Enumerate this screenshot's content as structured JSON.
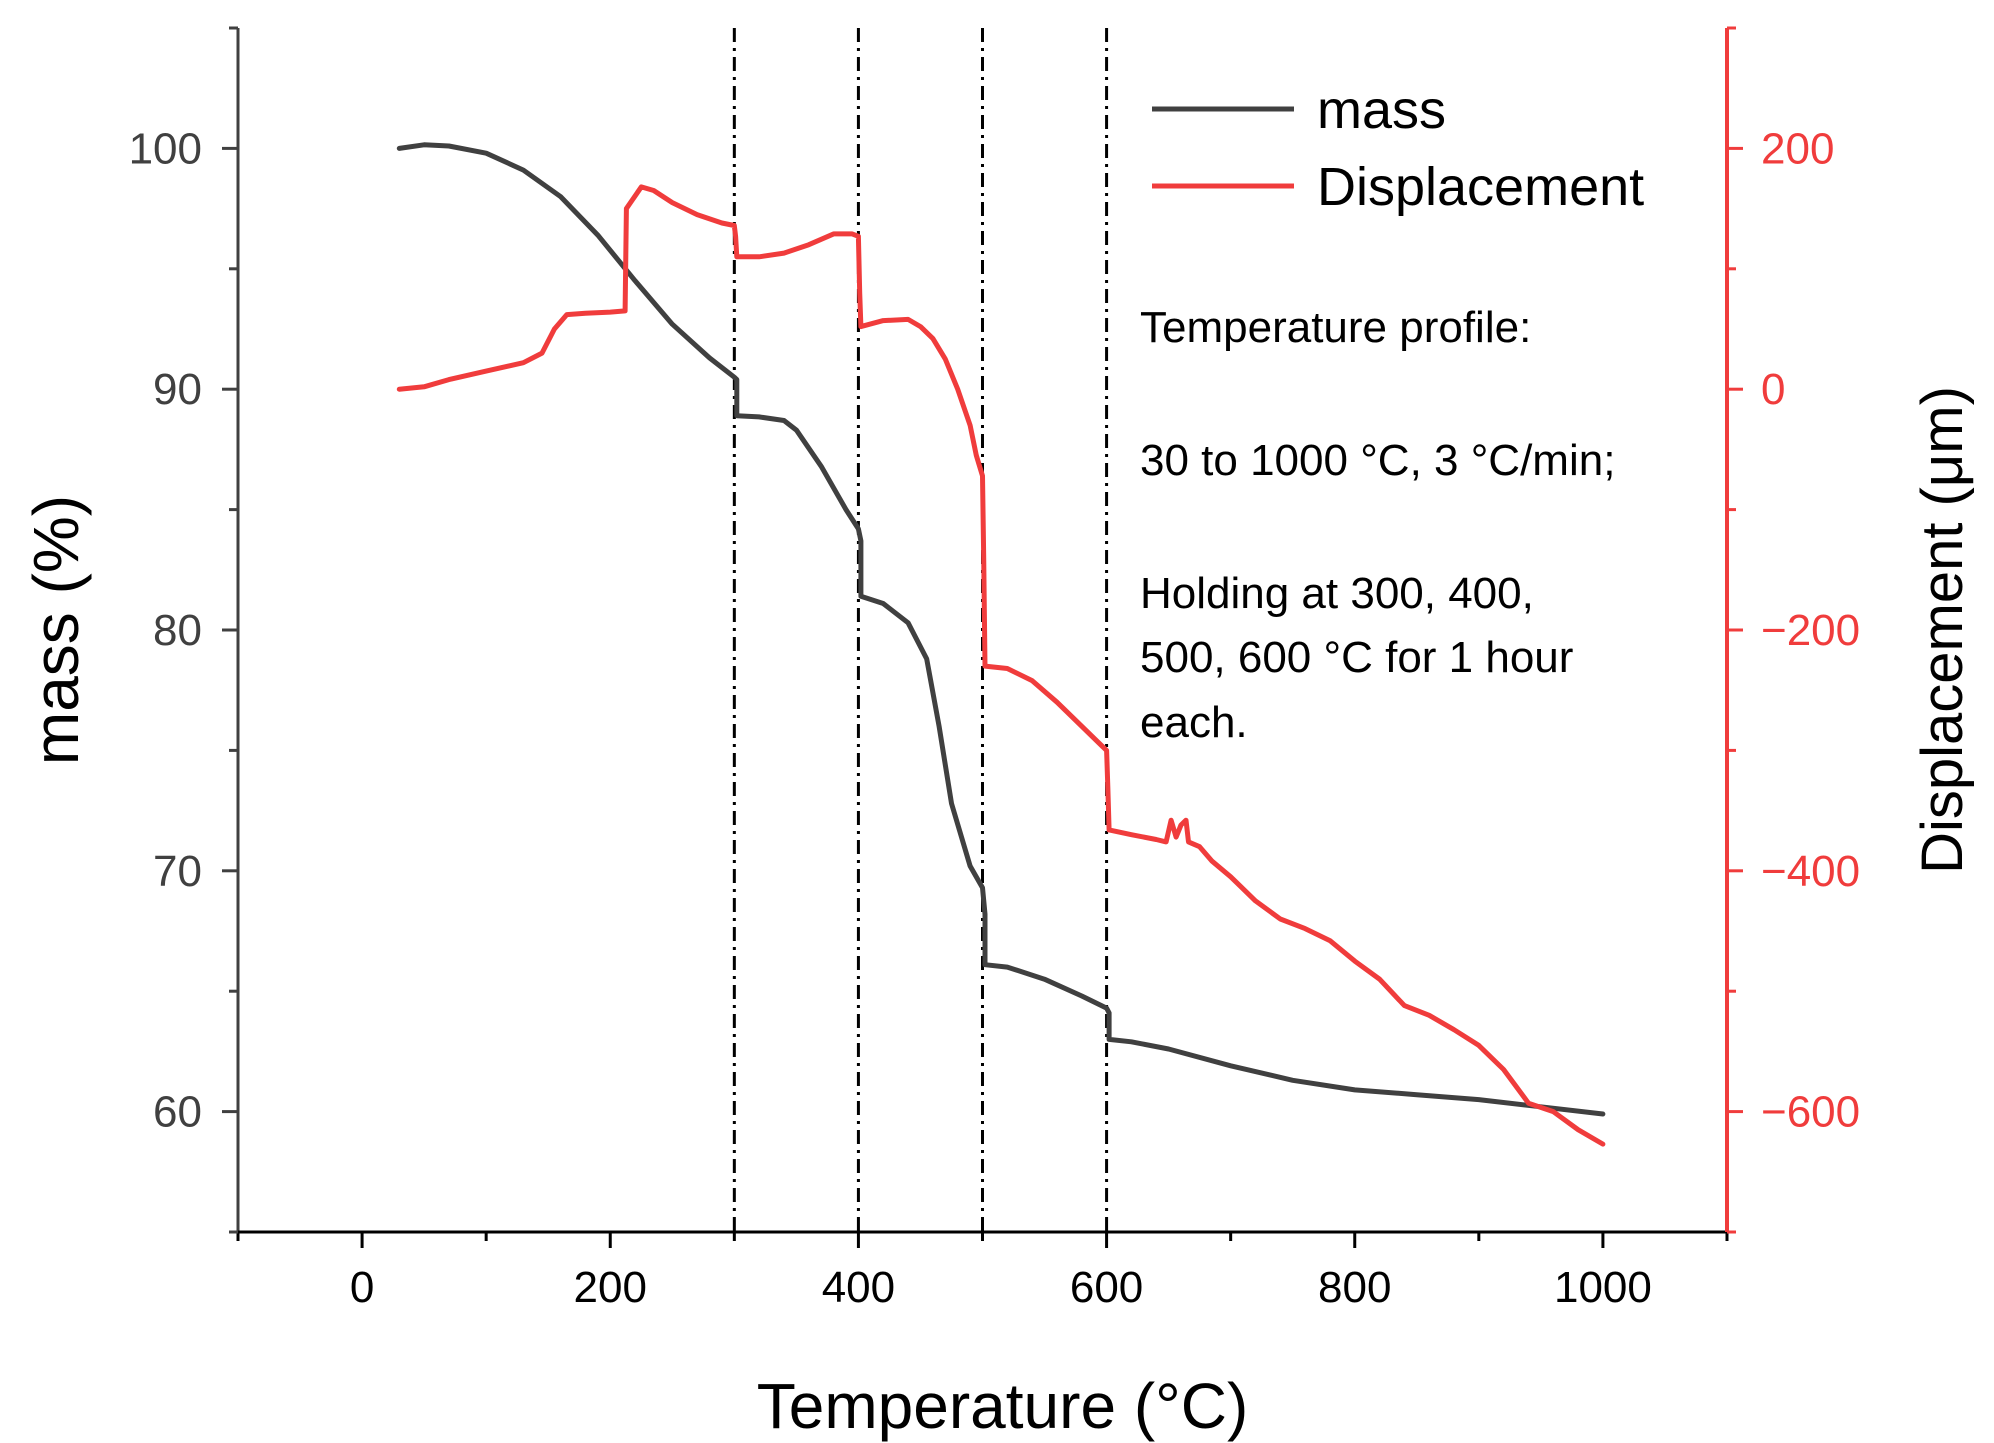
{
  "chart_data": {
    "type": "line",
    "xlabel": "Temperature (°C)",
    "ylabel_left": "mass (%)",
    "ylabel_right": "Displacement (μm)",
    "xlim": [
      -100,
      1100
    ],
    "ylim_left": [
      55,
      105
    ],
    "ylim_right": [
      -700,
      300
    ],
    "x_ticks": [
      0,
      200,
      400,
      600,
      800,
      1000
    ],
    "y_left_ticks": [
      60,
      70,
      80,
      90,
      100
    ],
    "y_right_ticks": [
      -600,
      -400,
      -200,
      0,
      200
    ],
    "grid": false,
    "legend_position": "top-right",
    "vertical_markers": [
      300,
      400,
      500,
      600
    ],
    "annotation_lines": [
      "Temperature profile:",
      "30 to 1000 °C, 3 °C/min;",
      "Holding at 300, 400,",
      "500, 600 °C for 1 hour",
      "each."
    ],
    "series": [
      {
        "name": "mass",
        "axis": "left",
        "color": "#404040",
        "points": [
          [
            30,
            100.0
          ],
          [
            50,
            100.15
          ],
          [
            70,
            100.1
          ],
          [
            100,
            99.8
          ],
          [
            130,
            99.1
          ],
          [
            160,
            98.0
          ],
          [
            190,
            96.4
          ],
          [
            220,
            94.5
          ],
          [
            250,
            92.7
          ],
          [
            280,
            91.3
          ],
          [
            300,
            90.5
          ],
          [
            302,
            90.4
          ],
          [
            302,
            88.9
          ],
          [
            320,
            88.85
          ],
          [
            340,
            88.7
          ],
          [
            350,
            88.3
          ],
          [
            370,
            86.8
          ],
          [
            390,
            85.0
          ],
          [
            400,
            84.2
          ],
          [
            402,
            83.7
          ],
          [
            402,
            81.4
          ],
          [
            420,
            81.1
          ],
          [
            440,
            80.3
          ],
          [
            455,
            78.8
          ],
          [
            465,
            76.0
          ],
          [
            475,
            72.8
          ],
          [
            490,
            70.2
          ],
          [
            500,
            69.3
          ],
          [
            502,
            68.2
          ],
          [
            502,
            66.1
          ],
          [
            520,
            66.0
          ],
          [
            550,
            65.5
          ],
          [
            580,
            64.8
          ],
          [
            600,
            64.3
          ],
          [
            602,
            64.1
          ],
          [
            602,
            63.0
          ],
          [
            620,
            62.9
          ],
          [
            650,
            62.6
          ],
          [
            700,
            61.9
          ],
          [
            750,
            61.3
          ],
          [
            800,
            60.9
          ],
          [
            850,
            60.7
          ],
          [
            900,
            60.5
          ],
          [
            950,
            60.2
          ],
          [
            1000,
            59.9
          ]
        ]
      },
      {
        "name": "Displacement",
        "axis": "right",
        "color": "#f03c3c",
        "points": [
          [
            30,
            0
          ],
          [
            50,
            2
          ],
          [
            70,
            8
          ],
          [
            100,
            15
          ],
          [
            130,
            22
          ],
          [
            145,
            30
          ],
          [
            155,
            50
          ],
          [
            165,
            62
          ],
          [
            180,
            63
          ],
          [
            200,
            64
          ],
          [
            212,
            65
          ],
          [
            213,
            150
          ],
          [
            225,
            168
          ],
          [
            235,
            165
          ],
          [
            250,
            155
          ],
          [
            270,
            145
          ],
          [
            290,
            138
          ],
          [
            300,
            136
          ],
          [
            301,
            127
          ],
          [
            302,
            110
          ],
          [
            320,
            110
          ],
          [
            340,
            113
          ],
          [
            360,
            120
          ],
          [
            380,
            129
          ],
          [
            395,
            129
          ],
          [
            400,
            127
          ],
          [
            401,
            80
          ],
          [
            402,
            52
          ],
          [
            420,
            57
          ],
          [
            440,
            58
          ],
          [
            450,
            52
          ],
          [
            460,
            42
          ],
          [
            470,
            25
          ],
          [
            480,
            0
          ],
          [
            490,
            -30
          ],
          [
            495,
            -55
          ],
          [
            500,
            -72
          ],
          [
            501,
            -140
          ],
          [
            502,
            -230
          ],
          [
            520,
            -232
          ],
          [
            540,
            -242
          ],
          [
            560,
            -260
          ],
          [
            580,
            -280
          ],
          [
            595,
            -295
          ],
          [
            600,
            -300
          ],
          [
            601,
            -330
          ],
          [
            602,
            -366
          ],
          [
            620,
            -370
          ],
          [
            640,
            -374
          ],
          [
            648,
            -376
          ],
          [
            652,
            -358
          ],
          [
            656,
            -372
          ],
          [
            660,
            -362
          ],
          [
            664,
            -358
          ],
          [
            666,
            -376
          ],
          [
            675,
            -380
          ],
          [
            685,
            -392
          ],
          [
            700,
            -405
          ],
          [
            720,
            -425
          ],
          [
            740,
            -440
          ],
          [
            760,
            -448
          ],
          [
            780,
            -458
          ],
          [
            800,
            -475
          ],
          [
            820,
            -490
          ],
          [
            840,
            -512
          ],
          [
            860,
            -520
          ],
          [
            880,
            -532
          ],
          [
            900,
            -545
          ],
          [
            920,
            -565
          ],
          [
            940,
            -593
          ],
          [
            960,
            -600
          ],
          [
            980,
            -615
          ],
          [
            1000,
            -627
          ]
        ]
      }
    ]
  }
}
